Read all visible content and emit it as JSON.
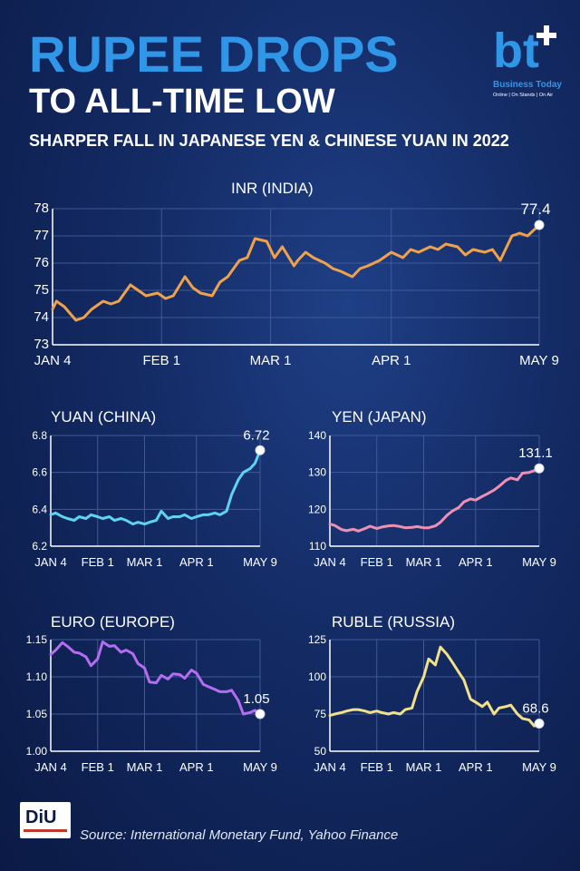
{
  "header": {
    "title_line1": "RUPEE DROPS",
    "title_line2": "TO ALL-TIME LOW",
    "subtitle": "SHARPER FALL IN JAPANESE YEN & CHINESE YUAN IN 2022"
  },
  "logo": {
    "mark": "bt",
    "name": "Business Today",
    "tagline": "Online | On Stands | On Air"
  },
  "footer": {
    "logo_text": "DiU",
    "source": "Source: International Monetary Fund, Yahoo Finance"
  },
  "colors": {
    "inr": "#f0a24a",
    "yuan": "#5ed4f2",
    "yen": "#ee8fb4",
    "euro": "#b46cf0",
    "ruble": "#f2e188",
    "grid": "#3f5a96",
    "axis": "#ffffff"
  },
  "chart_data": [
    {
      "id": "inr",
      "type": "line",
      "title": "INR (INDIA)",
      "x_ticks": [
        "JAN 4",
        "FEB 1",
        "MAR 1",
        "APR 1",
        "MAY 9"
      ],
      "ylim": [
        73,
        78
      ],
      "yticks": [
        73,
        74,
        75,
        76,
        77,
        78
      ],
      "grid": true,
      "end_label": "77.4",
      "series": [
        {
          "x": [
            "Jan 4",
            "Jan 5",
            "Jan 7",
            "Jan 10",
            "Jan 12",
            "Jan 14",
            "Jan 17",
            "Jan 19",
            "Jan 21",
            "Jan 24",
            "Jan 26",
            "Jan 28",
            "Jan 31",
            "Feb 2",
            "Feb 4",
            "Feb 7",
            "Feb 9",
            "Feb 11",
            "Feb 14",
            "Feb 16",
            "Feb 18",
            "Feb 21",
            "Feb 23",
            "Feb 25",
            "Feb 28",
            "Mar 2",
            "Mar 4",
            "Mar 7",
            "Mar 8",
            "Mar 10",
            "Mar 12",
            "Mar 15",
            "Mar 17",
            "Mar 19",
            "Mar 22",
            "Mar 24",
            "Mar 26",
            "Mar 29",
            "Apr 1",
            "Apr 4",
            "Apr 6",
            "Apr 8",
            "Apr 11",
            "Apr 13",
            "Apr 15",
            "Apr 18",
            "Apr 20",
            "Apr 22",
            "Apr 25",
            "Apr 27",
            "Apr 29",
            "May 2",
            "May 4",
            "May 6",
            "May 9"
          ],
          "values": [
            74.3,
            74.6,
            74.4,
            73.9,
            74.0,
            74.3,
            74.6,
            74.5,
            74.6,
            75.2,
            75.0,
            74.8,
            74.9,
            74.7,
            74.8,
            75.5,
            75.1,
            74.9,
            74.8,
            75.3,
            75.5,
            76.1,
            76.2,
            76.9,
            76.8,
            76.2,
            76.6,
            75.9,
            76.1,
            76.4,
            76.2,
            76.0,
            75.8,
            75.7,
            75.5,
            75.8,
            75.9,
            76.1,
            76.4,
            76.2,
            76.5,
            76.4,
            76.6,
            76.5,
            76.7,
            76.6,
            76.3,
            76.5,
            76.4,
            76.5,
            76.1,
            77.0,
            77.1,
            77.0,
            77.4
          ]
        }
      ]
    },
    {
      "id": "yuan",
      "type": "line",
      "title": "YUAN (CHINA)",
      "x_ticks": [
        "JAN 4",
        "FEB 1",
        "MAR 1",
        "APR 1",
        "MAY 9"
      ],
      "ylim": [
        6.2,
        6.8
      ],
      "yticks": [
        6.2,
        6.4,
        6.6,
        6.8
      ],
      "grid": true,
      "end_label": "6.72",
      "series": [
        {
          "x": [
            "Jan 4",
            "Jan 7",
            "Jan 11",
            "Jan 14",
            "Jan 18",
            "Jan 21",
            "Jan 25",
            "Jan 28",
            "Feb 1",
            "Feb 4",
            "Feb 8",
            "Feb 11",
            "Feb 15",
            "Feb 18",
            "Feb 22",
            "Feb 25",
            "Mar 1",
            "Mar 4",
            "Mar 8",
            "Mar 11",
            "Mar 15",
            "Mar 18",
            "Mar 22",
            "Mar 25",
            "Mar 29",
            "Apr 1",
            "Apr 5",
            "Apr 8",
            "Apr 12",
            "Apr 15",
            "Apr 19",
            "Apr 22",
            "Apr 26",
            "Apr 29",
            "May 3",
            "May 6",
            "May 9"
          ],
          "values": [
            6.37,
            6.38,
            6.36,
            6.35,
            6.34,
            6.36,
            6.35,
            6.37,
            6.36,
            6.35,
            6.36,
            6.34,
            6.35,
            6.34,
            6.32,
            6.33,
            6.32,
            6.33,
            6.34,
            6.39,
            6.35,
            6.36,
            6.36,
            6.37,
            6.35,
            6.36,
            6.37,
            6.37,
            6.38,
            6.37,
            6.39,
            6.48,
            6.56,
            6.6,
            6.62,
            6.65,
            6.72
          ]
        }
      ]
    },
    {
      "id": "yen",
      "type": "line",
      "title": "YEN (JAPAN)",
      "x_ticks": [
        "JAN 4",
        "FEB 1",
        "MAR 1",
        "APR 1",
        "MAY 9"
      ],
      "ylim": [
        110,
        140
      ],
      "yticks": [
        110,
        120,
        130,
        140
      ],
      "grid": true,
      "end_label": "131.1",
      "series": [
        {
          "x": [
            "Jan 4",
            "Jan 7",
            "Jan 11",
            "Jan 14",
            "Jan 18",
            "Jan 21",
            "Jan 25",
            "Jan 28",
            "Feb 1",
            "Feb 4",
            "Feb 8",
            "Feb 11",
            "Feb 15",
            "Feb 18",
            "Feb 22",
            "Feb 25",
            "Mar 1",
            "Mar 4",
            "Mar 8",
            "Mar 11",
            "Mar 15",
            "Mar 18",
            "Mar 22",
            "Mar 25",
            "Mar 29",
            "Apr 1",
            "Apr 5",
            "Apr 8",
            "Apr 12",
            "Apr 15",
            "Apr 19",
            "Apr 22",
            "Apr 26",
            "Apr 29",
            "May 3",
            "May 6",
            "May 9"
          ],
          "values": [
            116,
            115.6,
            114.5,
            114.2,
            114.6,
            114.1,
            114.8,
            115.4,
            114.8,
            115.2,
            115.5,
            115.6,
            115.3,
            115.0,
            115.1,
            115.3,
            115.0,
            115.0,
            115.5,
            116.5,
            118.4,
            119.5,
            120.5,
            122.0,
            122.8,
            122.5,
            123.5,
            124.2,
            125.2,
            126.2,
            127.8,
            128.5,
            128.0,
            129.8,
            130.0,
            130.5,
            131.1
          ]
        }
      ]
    },
    {
      "id": "euro",
      "type": "line",
      "title": "EURO (EUROPE)",
      "x_ticks": [
        "JAN 4",
        "FEB 1",
        "MAR 1",
        "APR 1",
        "MAY 9"
      ],
      "ylim": [
        1.0,
        1.15
      ],
      "yticks": [
        1.0,
        1.05,
        1.1,
        1.15
      ],
      "grid": true,
      "end_label": "1.05",
      "series": [
        {
          "x": [
            "Jan 4",
            "Jan 7",
            "Jan 11",
            "Jan 14",
            "Jan 18",
            "Jan 21",
            "Jan 25",
            "Jan 28",
            "Feb 1",
            "Feb 4",
            "Feb 8",
            "Feb 11",
            "Feb 15",
            "Feb 18",
            "Feb 22",
            "Feb 25",
            "Mar 1",
            "Mar 4",
            "Mar 8",
            "Mar 11",
            "Mar 15",
            "Mar 18",
            "Mar 22",
            "Mar 25",
            "Mar 29",
            "Apr 1",
            "Apr 5",
            "Apr 8",
            "Apr 12",
            "Apr 15",
            "Apr 19",
            "Apr 22",
            "Apr 26",
            "Apr 29",
            "May 3",
            "May 6",
            "May 9"
          ],
          "values": [
            1.13,
            1.136,
            1.146,
            1.141,
            1.133,
            1.132,
            1.127,
            1.115,
            1.124,
            1.147,
            1.141,
            1.142,
            1.133,
            1.136,
            1.131,
            1.118,
            1.112,
            1.093,
            1.092,
            1.102,
            1.097,
            1.104,
            1.103,
            1.098,
            1.109,
            1.105,
            1.09,
            1.087,
            1.083,
            1.08,
            1.08,
            1.082,
            1.068,
            1.05,
            1.052,
            1.055,
            1.05
          ]
        }
      ]
    },
    {
      "id": "ruble",
      "type": "line",
      "title": "RUBLE (RUSSIA)",
      "x_ticks": [
        "JAN 4",
        "FEB 1",
        "MAR 1",
        "APR 1",
        "MAY 9"
      ],
      "ylim": [
        50,
        125
      ],
      "yticks": [
        50,
        75,
        100,
        125
      ],
      "grid": true,
      "end_label": "68.6",
      "series": [
        {
          "x": [
            "Jan 4",
            "Jan 7",
            "Jan 11",
            "Jan 14",
            "Jan 18",
            "Jan 21",
            "Jan 25",
            "Jan 28",
            "Feb 1",
            "Feb 4",
            "Feb 8",
            "Feb 11",
            "Feb 15",
            "Feb 18",
            "Feb 22",
            "Feb 25",
            "Mar 1",
            "Mar 4",
            "Mar 8",
            "Mar 11",
            "Mar 15",
            "Mar 18",
            "Mar 22",
            "Mar 25",
            "Mar 29",
            "Apr 1",
            "Apr 5",
            "Apr 8",
            "Apr 12",
            "Apr 15",
            "Apr 19",
            "Apr 22",
            "Apr 26",
            "Apr 29",
            "May 3",
            "May 6",
            "May 9"
          ],
          "values": [
            74,
            75,
            76,
            77,
            78,
            78,
            77,
            76,
            77,
            76,
            75,
            76,
            75,
            78,
            79,
            90,
            100,
            112,
            108,
            120,
            115,
            110,
            103,
            98,
            85,
            83,
            80,
            83,
            75,
            79,
            80,
            81,
            75,
            72,
            71,
            67,
            68.6
          ]
        }
      ]
    }
  ]
}
